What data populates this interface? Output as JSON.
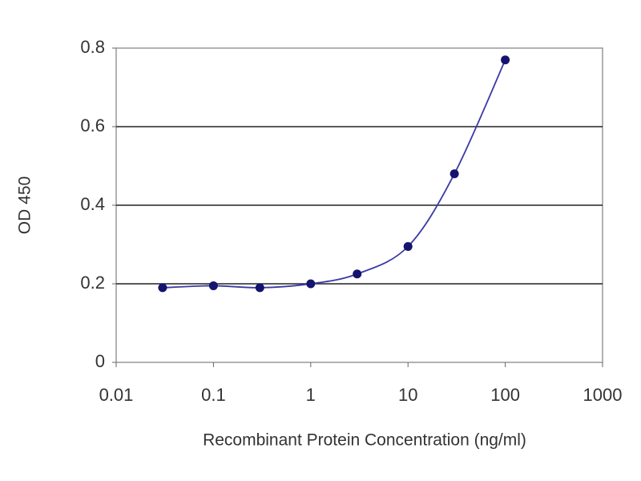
{
  "chart_data": {
    "type": "scatter",
    "x_label": "Recombinant Protein Concentration (ng/ml)",
    "y_label": "OD 450",
    "x_log": true,
    "xlim": [
      0.01,
      1000
    ],
    "xticks": [
      0.01,
      0.1,
      1,
      10,
      100,
      1000
    ],
    "ylim": [
      0,
      0.8
    ],
    "yticks": [
      0,
      0.2,
      0.4,
      0.6,
      0.8
    ],
    "grid": true,
    "series": [
      {
        "color": "#14146e",
        "line_color": "#3a3aa6",
        "x": [
          0.03,
          0.1,
          0.3,
          1,
          3,
          10,
          30,
          100
        ],
        "values": [
          0.19,
          0.195,
          0.19,
          0.2,
          0.225,
          0.295,
          0.48,
          0.77
        ]
      }
    ]
  }
}
